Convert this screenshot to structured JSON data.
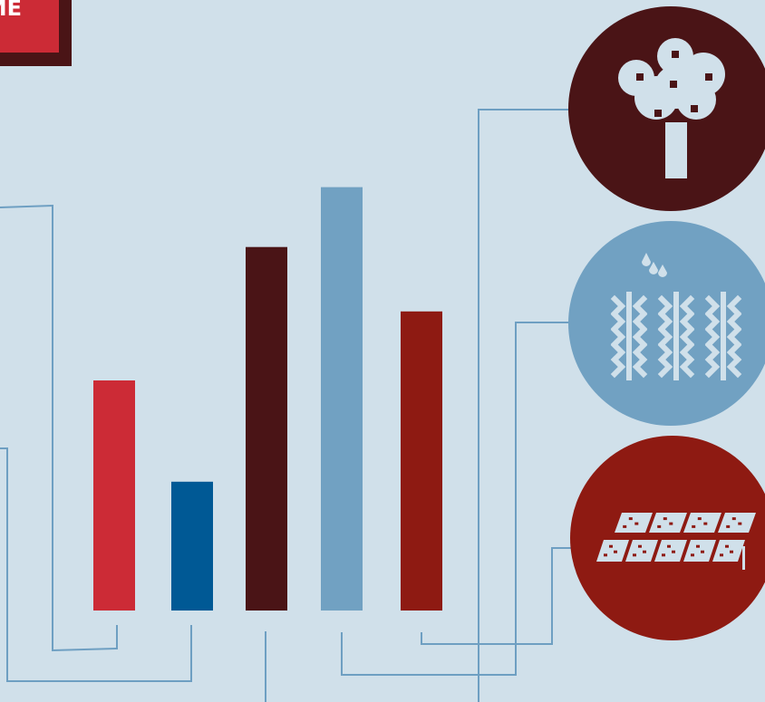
{
  "badge": {
    "text": "ME"
  },
  "colors": {
    "background": "#d0e0ea",
    "connector": "#6e9fc2",
    "badge": "#cc2b36",
    "badge_shadow": "#4a1416"
  },
  "chart_data": {
    "type": "bar",
    "categories": [
      "",
      "",
      "",
      "",
      ""
    ],
    "values": [
      50,
      28,
      79,
      92,
      65
    ],
    "ylim": [
      0,
      100
    ],
    "grid": false,
    "title": "",
    "xlabel": "",
    "ylabel": "",
    "colors": [
      "#cc2b36",
      "#005995",
      "#4a1416",
      "#71a1c2",
      "#8e1a12"
    ]
  },
  "icons": [
    {
      "name": "fruit-tree-icon",
      "color": "#4a1416",
      "glyph": "#d0e0ea"
    },
    {
      "name": "watered-crops-icon",
      "color": "#71a1c2",
      "glyph": "#d0e0ea"
    },
    {
      "name": "solar-panels-icon",
      "color": "#8e1a12",
      "glyph": "#d0e0ea"
    }
  ]
}
